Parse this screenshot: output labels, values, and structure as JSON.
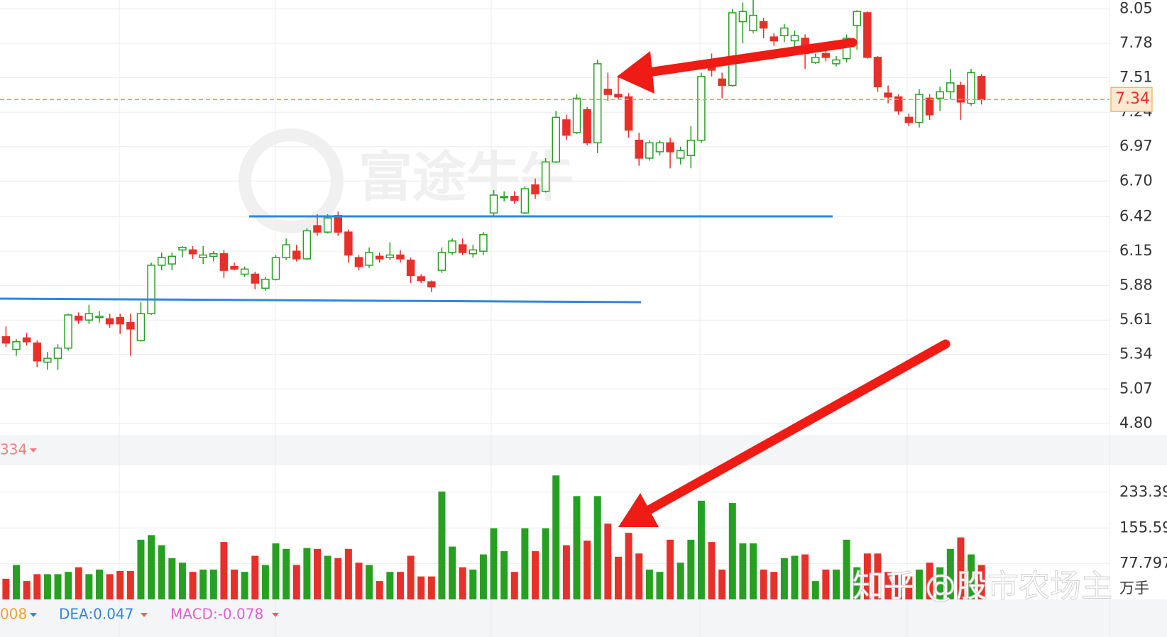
{
  "chart_data": [
    {
      "type": "candlestick",
      "open": [
        5.48,
        5.38,
        5.47,
        5.43,
        5.28,
        5.31,
        5.39,
        5.64,
        5.61,
        5.63,
        5.62,
        5.63,
        5.59,
        5.45,
        5.66,
        6.04,
        6.05,
        6.16,
        6.16,
        6.1,
        6.11,
        6.13,
        6.03,
        5.97,
        5.97,
        5.86,
        5.93,
        6.1,
        6.15,
        6.09,
        6.35,
        6.3,
        6.43,
        6.3,
        6.1,
        6.04,
        6.11,
        6.1,
        6.12,
        6.08,
        5.95,
        5.91,
        6.0,
        6.14,
        6.2,
        6.13,
        6.15,
        6.45,
        6.57,
        6.58,
        6.45,
        6.67,
        6.62,
        6.85,
        7.18,
        7.08,
        7.26,
        7.0,
        7.42,
        7.38,
        7.36,
        7.02,
        6.88,
        6.93,
        7.0,
        6.88,
        6.9,
        7.02,
        7.62,
        7.5,
        7.45,
        7.95,
        7.88,
        7.95,
        7.83,
        7.84,
        7.8,
        7.82,
        7.63,
        7.7,
        7.62,
        7.66,
        7.92,
        8.02,
        7.67,
        7.39,
        7.36,
        7.2,
        7.16,
        7.35,
        7.35,
        7.4,
        7.45,
        7.31,
        7.52
      ],
      "high": [
        5.56,
        5.46,
        5.51,
        5.45,
        5.36,
        5.42,
        5.66,
        5.67,
        5.73,
        5.68,
        5.66,
        5.66,
        5.66,
        5.75,
        6.06,
        6.14,
        6.14,
        6.19,
        6.19,
        6.19,
        6.15,
        6.16,
        6.06,
        6.03,
        5.99,
        5.95,
        6.12,
        6.25,
        6.2,
        6.33,
        6.44,
        6.44,
        6.46,
        6.32,
        6.12,
        6.18,
        6.14,
        6.22,
        6.16,
        6.1,
        5.97,
        5.92,
        6.18,
        6.25,
        6.25,
        6.2,
        6.3,
        6.63,
        6.62,
        6.62,
        6.66,
        6.72,
        6.88,
        7.25,
        7.22,
        7.38,
        7.28,
        7.65,
        7.55,
        7.52,
        7.39,
        7.08,
        7.02,
        7.02,
        7.04,
        6.97,
        7.13,
        7.55,
        7.7,
        7.55,
        8.05,
        8.1,
        8.15,
        7.98,
        7.86,
        7.93,
        7.88,
        7.85,
        7.7,
        7.78,
        7.68,
        7.85,
        8.04,
        8.03,
        7.68,
        7.45,
        7.38,
        7.23,
        7.42,
        7.38,
        7.44,
        7.58,
        7.48,
        7.58,
        7.54
      ],
      "low": [
        5.4,
        5.33,
        5.41,
        5.24,
        5.22,
        5.22,
        5.37,
        5.58,
        5.58,
        5.59,
        5.55,
        5.5,
        5.33,
        5.44,
        5.65,
        6.0,
        6.0,
        6.1,
        6.09,
        6.05,
        6.07,
        5.94,
        6.0,
        5.95,
        5.85,
        5.84,
        5.92,
        6.08,
        6.07,
        6.08,
        6.27,
        6.29,
        6.27,
        6.06,
        6.0,
        6.02,
        6.06,
        6.08,
        6.06,
        5.9,
        5.9,
        5.83,
        5.98,
        6.12,
        6.12,
        6.1,
        6.12,
        6.42,
        6.54,
        6.52,
        6.44,
        6.56,
        6.61,
        6.84,
        7.02,
        7.07,
        6.98,
        6.92,
        7.33,
        7.34,
        7.04,
        6.82,
        6.86,
        6.9,
        6.8,
        6.83,
        6.8,
        7.0,
        7.52,
        7.35,
        7.44,
        7.78,
        7.86,
        7.82,
        7.76,
        7.79,
        7.75,
        7.58,
        7.62,
        7.64,
        7.6,
        7.63,
        7.73,
        7.66,
        7.4,
        7.31,
        7.22,
        7.13,
        7.12,
        7.18,
        7.25,
        7.34,
        7.18,
        7.29,
        7.3
      ],
      "close": [
        5.43,
        5.44,
        5.44,
        5.29,
        5.31,
        5.39,
        5.65,
        5.61,
        5.66,
        5.64,
        5.58,
        5.58,
        5.54,
        5.66,
        6.04,
        6.1,
        6.11,
        6.18,
        6.13,
        6.12,
        6.13,
        6.0,
        6.01,
        6.01,
        5.9,
        5.93,
        6.1,
        6.2,
        6.09,
        6.31,
        6.3,
        6.41,
        6.3,
        6.12,
        6.03,
        6.14,
        6.09,
        6.12,
        6.09,
        5.96,
        5.92,
        5.87,
        6.14,
        6.23,
        6.14,
        6.16,
        6.28,
        6.59,
        6.58,
        6.55,
        6.64,
        6.6,
        6.85,
        7.2,
        7.06,
        7.35,
        7.0,
        7.62,
        7.38,
        7.36,
        7.1,
        6.88,
        7.0,
        7.0,
        6.93,
        6.94,
        7.02,
        7.52,
        7.57,
        7.45,
        8.02,
        8.03,
        8.0,
        7.9,
        7.8,
        7.9,
        7.84,
        7.7,
        7.67,
        7.67,
        7.65,
        7.82,
        8.03,
        7.67,
        7.44,
        7.36,
        7.25,
        7.16,
        7.38,
        7.22,
        7.4,
        7.47,
        7.32,
        7.55,
        7.34
      ],
      "up_color": "#27a022",
      "down_color": "#e8302a",
      "ylim": [
        4.71,
        8.12
      ],
      "yticks": [
        8.05,
        7.78,
        7.51,
        7.24,
        6.97,
        {
          "value": 6.7,
          "label": "6.70"
        },
        6.42,
        6.15,
        5.88,
        5.61,
        5.34,
        5.07,
        {
          "value": 4.8,
          "label": "4.80"
        }
      ],
      "grid": true,
      "current_price": 7.34,
      "current_price_color": "#f0a030"
    },
    {
      "type": "bar",
      "values": [
        45,
        75,
        40,
        55,
        55,
        55,
        60,
        70,
        55,
        65,
        55,
        62,
        62,
        130,
        140,
        118,
        90,
        80,
        60,
        65,
        65,
        125,
        65,
        60,
        95,
        75,
        122,
        110,
        75,
        112,
        110,
        95,
        90,
        110,
        80,
        75,
        40,
        60,
        60,
        95,
        50,
        50,
        235,
        115,
        70,
        65,
        98,
        155,
        105,
        60,
        155,
        105,
        155,
        270,
        118,
        225,
        128,
        225,
        165,
        93,
        145,
        100,
        65,
        60,
        130,
        80,
        130,
        215,
        125,
        65,
        210,
        122,
        122,
        65,
        60,
        90,
        95,
        98,
        40,
        65,
        65,
        130,
        70,
        100,
        100,
        60,
        55,
        50,
        65,
        80,
        70,
        110,
        135,
        98,
        75
      ],
      "ylim": [
        0,
        292
      ],
      "yticks": [
        233.39,
        155.59,
        77.797
      ],
      "unit": "万手",
      "grid": true
    }
  ],
  "indicator_bar": {
    "ma": "334",
    "macd_fast": "008",
    "dea": "DEA:0.047",
    "macd": "MACD:-0.078"
  },
  "watermarks": [
    "富途牛牛",
    "知乎 @股市农场主"
  ]
}
